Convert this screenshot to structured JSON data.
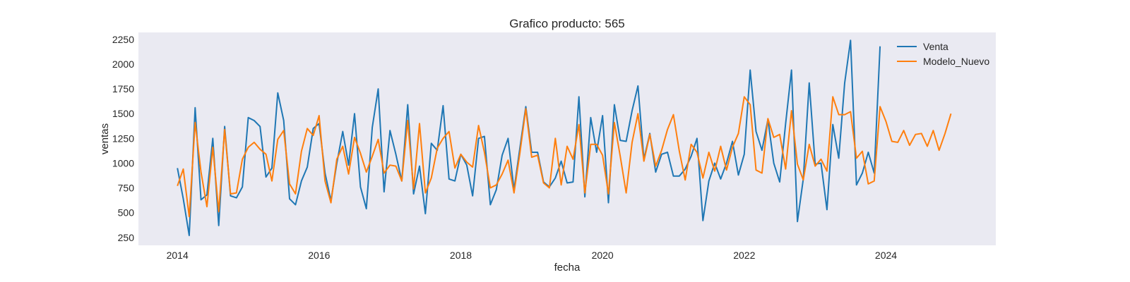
{
  "chart_data": {
    "type": "line",
    "title": "Grafico producto: 565",
    "xlabel": "fecha",
    "ylabel": "ventas",
    "xlim": [
      2013.45,
      2025.55
    ],
    "ylim": [
      170,
      2320
    ],
    "x_ticks": [
      2014,
      2016,
      2018,
      2020,
      2022,
      2024
    ],
    "y_ticks": [
      250,
      500,
      750,
      1000,
      1250,
      1500,
      1750,
      2000,
      2250
    ],
    "grid": false,
    "background": "#eaeaf2",
    "legend": {
      "position": "top-right",
      "entries": [
        "Venta",
        "Modelo_Nuevo"
      ]
    },
    "series": [
      {
        "name": "Venta",
        "color": "#1f77b4",
        "start": 2014.0,
        "step": 0.0833333,
        "values": [
          950,
          640,
          270,
          1560,
          630,
          680,
          1250,
          370,
          1370,
          670,
          650,
          760,
          1460,
          1430,
          1370,
          860,
          950,
          1710,
          1430,
          640,
          580,
          820,
          960,
          1350,
          1400,
          900,
          620,
          1000,
          1320,
          980,
          1500,
          760,
          540,
          1360,
          1750,
          710,
          1330,
          1090,
          820,
          1590,
          690,
          970,
          490,
          1200,
          1130,
          1580,
          840,
          820,
          1090,
          980,
          670,
          1250,
          1270,
          580,
          730,
          1080,
          1250,
          730,
          1150,
          1570,
          1110,
          1110,
          810,
          760,
          850,
          1020,
          800,
          810,
          1670,
          660,
          1460,
          1110,
          1480,
          600,
          1590,
          1230,
          1220,
          1530,
          1780,
          1040,
          1300,
          910,
          1090,
          1110,
          870,
          870,
          940,
          1070,
          1250,
          420,
          820,
          1000,
          840,
          1000,
          1220,
          880,
          1090,
          1940,
          1320,
          1130,
          1440,
          1000,
          810,
          1400,
          1940,
          410,
          840,
          1810,
          990,
          1000,
          530,
          1390,
          1050,
          1810,
          2240,
          780,
          900,
          1110,
          900,
          2180
        ]
      },
      {
        "name": "Modelo_Nuevo",
        "color": "#ff7f0e",
        "start": 2014.0,
        "step": 0.0833333,
        "values": [
          770,
          940,
          460,
          1410,
          910,
          560,
          1160,
          510,
          1340,
          690,
          700,
          1040,
          1160,
          1210,
          1140,
          1090,
          820,
          1240,
          1330,
          790,
          690,
          1120,
          1350,
          1280,
          1480,
          820,
          600,
          1040,
          1170,
          890,
          1260,
          1100,
          910,
          1070,
          1240,
          900,
          980,
          970,
          820,
          1430,
          740,
          1400,
          700,
          850,
          1150,
          1250,
          1320,
          950,
          1090,
          1010,
          960,
          1380,
          1110,
          750,
          780,
          890,
          1030,
          700,
          1100,
          1550,
          1060,
          1080,
          800,
          750,
          1250,
          780,
          1170,
          1040,
          1390,
          700,
          1190,
          1190,
          1080,
          690,
          1410,
          1070,
          700,
          1210,
          1500,
          1020,
          1290,
          970,
          1130,
          1340,
          1490,
          1120,
          830,
          1190,
          1110,
          850,
          1110,
          920,
          1170,
          930,
          1160,
          1300,
          1670,
          1590,
          930,
          900,
          1450,
          1260,
          1290,
          940,
          1530,
          990,
          830,
          1190,
          970,
          1040,
          920,
          1670,
          1490,
          1490,
          1520,
          1050,
          1120,
          790,
          820,
          1570,
          1420,
          1220,
          1210,
          1330,
          1180,
          1290,
          1300,
          1170,
          1330,
          1130,
          1300,
          1500
        ]
      }
    ]
  }
}
